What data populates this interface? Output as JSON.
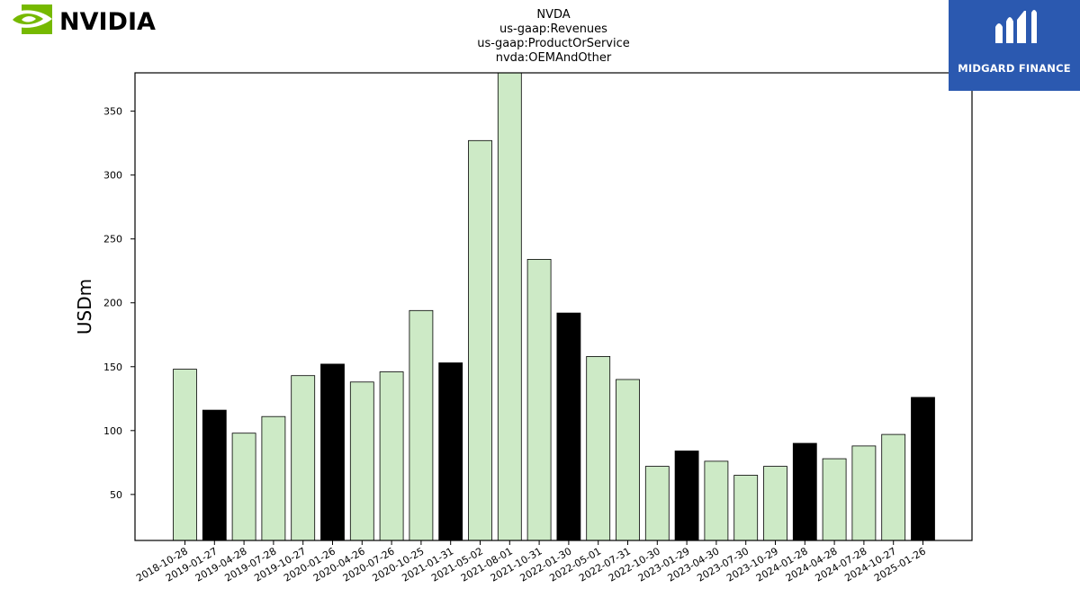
{
  "brand": {
    "left_logo_text": "NVIDIA",
    "right_logo_text": "MIDGARD FINANCE",
    "nvidia_green": "#76b900",
    "midgard_blue": "#2b59b0"
  },
  "chart_data": {
    "type": "bar",
    "title_lines": [
      "NVDA",
      "us-gaap:Revenues",
      "us-gaap:ProductOrService",
      "nvda:OEMAndOther"
    ],
    "xlabel": "",
    "ylabel": "USDm",
    "ylim": [
      14,
      380
    ],
    "yticks": [
      50,
      100,
      150,
      200,
      250,
      300,
      350
    ],
    "grid": false,
    "categories": [
      "2018-10-28",
      "2019-01-27",
      "2019-04-28",
      "2019-07-28",
      "2019-10-27",
      "2020-01-26",
      "2020-04-26",
      "2020-07-26",
      "2020-10-25",
      "2021-01-31",
      "2021-05-02",
      "2021-08-01",
      "2021-10-31",
      "2022-01-30",
      "2022-05-01",
      "2022-07-31",
      "2022-10-30",
      "2023-01-29",
      "2023-04-30",
      "2023-07-30",
      "2023-10-29",
      "2024-01-28",
      "2024-04-28",
      "2024-07-28",
      "2024-10-27",
      "2025-01-26"
    ],
    "values": [
      148,
      116,
      98,
      111,
      143,
      152,
      138,
      146,
      194,
      153,
      327,
      380,
      234,
      192,
      158,
      140,
      72,
      84,
      76,
      65,
      72,
      90,
      78,
      88,
      97,
      126
    ],
    "colors": {
      "quarter": "#cdeac6",
      "fiscal_year_end": "#000000",
      "edge": "#000000"
    },
    "fiscal_year_end_indices": [
      1,
      5,
      9,
      13,
      17,
      21,
      25
    ]
  }
}
